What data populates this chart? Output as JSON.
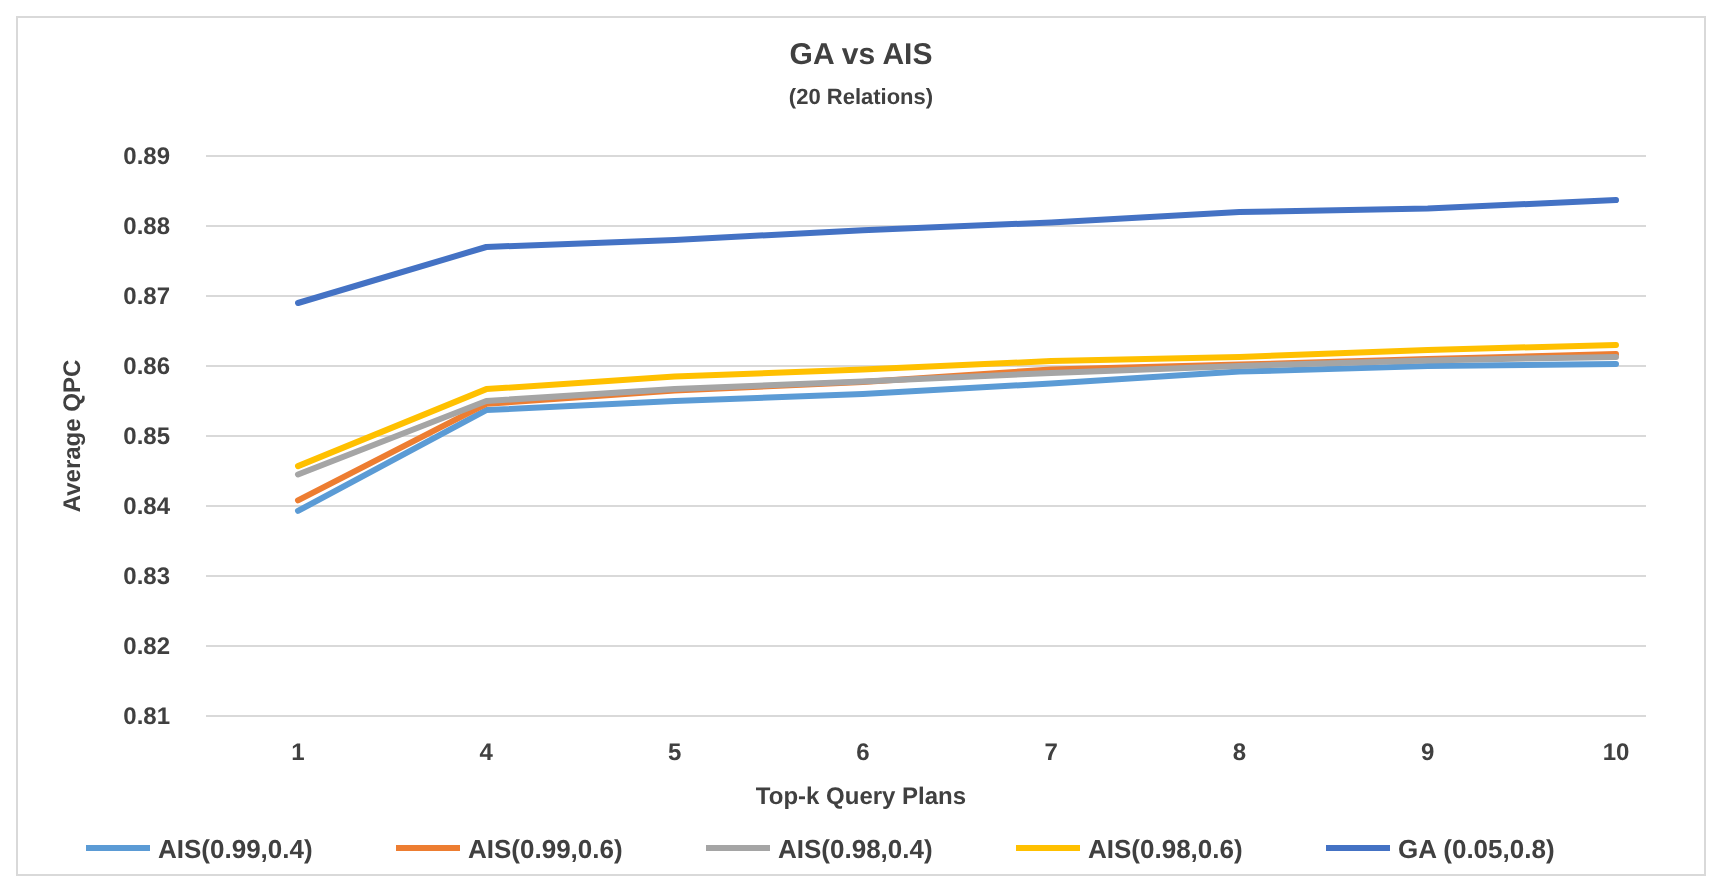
{
  "chart_data": {
    "type": "line",
    "title": "GA vs AIS",
    "subtitle": "(20 Relations)",
    "xlabel": "Top-k Query Plans",
    "ylabel": "Average QPC",
    "categories": [
      "1",
      "4",
      "5",
      "6",
      "7",
      "8",
      "9",
      "10"
    ],
    "series": [
      {
        "name": "AIS(0.99,0.4)",
        "color": "#5b9bd5",
        "values": [
          0.8393,
          0.8537,
          0.855,
          0.856,
          0.8575,
          0.8592,
          0.86,
          0.8603
        ]
      },
      {
        "name": "AIS(0.99,0.6)",
        "color": "#ed7d31",
        "values": [
          0.8408,
          0.8546,
          0.8565,
          0.8577,
          0.8595,
          0.8602,
          0.861,
          0.8617
        ]
      },
      {
        "name": "AIS(0.98,0.4)",
        "color": "#a5a5a5",
        "values": [
          0.8445,
          0.855,
          0.8567,
          0.8578,
          0.859,
          0.86,
          0.8608,
          0.8613
        ]
      },
      {
        "name": "AIS(0.98,0.6)",
        "color": "#ffc000",
        "values": [
          0.8457,
          0.8567,
          0.8585,
          0.8595,
          0.8607,
          0.8613,
          0.8623,
          0.863
        ]
      },
      {
        "name": "GA (0.05,0.8)",
        "color": "#4472c4",
        "values": [
          0.869,
          0.877,
          0.878,
          0.8794,
          0.8805,
          0.882,
          0.8825,
          0.8837
        ]
      }
    ],
    "ylim": [
      0.81,
      0.89
    ],
    "yticks": [
      0.81,
      0.82,
      0.83,
      0.84,
      0.85,
      0.86,
      0.87,
      0.88,
      0.89
    ],
    "grid": "y",
    "legend": "bottom",
    "marker": "none",
    "line_style": "solid"
  }
}
